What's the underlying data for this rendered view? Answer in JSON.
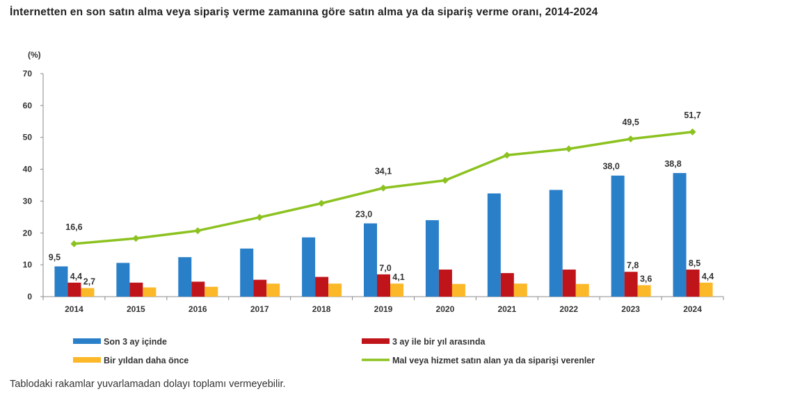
{
  "chart_data": {
    "type": "bar",
    "title": "İnternetten en son satın alma veya sipariş verme zamanına göre satın alma ya da sipariş verme oranı, 2014-2024",
    "ylabel": "(%)",
    "xlabel": "",
    "ylim": [
      0,
      70
    ],
    "yticks": [
      0,
      10,
      20,
      30,
      40,
      50,
      60,
      70
    ],
    "grid": false,
    "legend": "bottom",
    "categories": [
      "2014",
      "2015",
      "2016",
      "2017",
      "2018",
      "2019",
      "2020",
      "2021",
      "2022",
      "2023",
      "2024"
    ],
    "series": [
      {
        "name": "Son 3 ay içinde",
        "kind": "bar",
        "color": "#2a7fc9",
        "values": [
          9.5,
          10.6,
          12.4,
          15.1,
          18.6,
          23.0,
          24.0,
          32.4,
          33.5,
          38.0,
          38.8
        ],
        "labels": [
          "9,5",
          "",
          "",
          "",
          "",
          "23,0",
          "",
          "",
          "",
          "38,0",
          "38,8"
        ]
      },
      {
        "name": "3 ay ile bir yıl arasında",
        "kind": "bar",
        "color": "#c0141b",
        "values": [
          4.4,
          4.4,
          4.7,
          5.3,
          6.2,
          7.0,
          8.5,
          7.4,
          8.5,
          7.8,
          8.5
        ],
        "labels": [
          "4,4",
          "",
          "",
          "",
          "",
          "7,0",
          "",
          "",
          "",
          "7,8",
          "8,5"
        ]
      },
      {
        "name": "Bir yıldan daha önce",
        "kind": "bar",
        "color": "#fbb829",
        "values": [
          2.7,
          2.9,
          3.1,
          4.1,
          4.1,
          4.1,
          4.0,
          4.1,
          4.0,
          3.6,
          4.4
        ],
        "labels": [
          "2,7",
          "",
          "",
          "",
          "",
          "4,1",
          "",
          "",
          "",
          "3,6",
          "4,4"
        ]
      },
      {
        "name": "Mal veya hizmet satın alan ya da siparişi verenler",
        "kind": "line",
        "color": "#8cc220",
        "values": [
          16.6,
          18.3,
          20.7,
          24.9,
          29.3,
          34.1,
          36.5,
          44.4,
          46.4,
          49.5,
          51.7
        ],
        "labels": [
          "16,6",
          "",
          "",
          "",
          "",
          "34,1",
          "",
          "",
          "",
          "49,5",
          "51,7"
        ]
      }
    ]
  },
  "footnote": "Tablodaki rakamlar yuvarlamadan dolayı toplamı vermeyebilir."
}
